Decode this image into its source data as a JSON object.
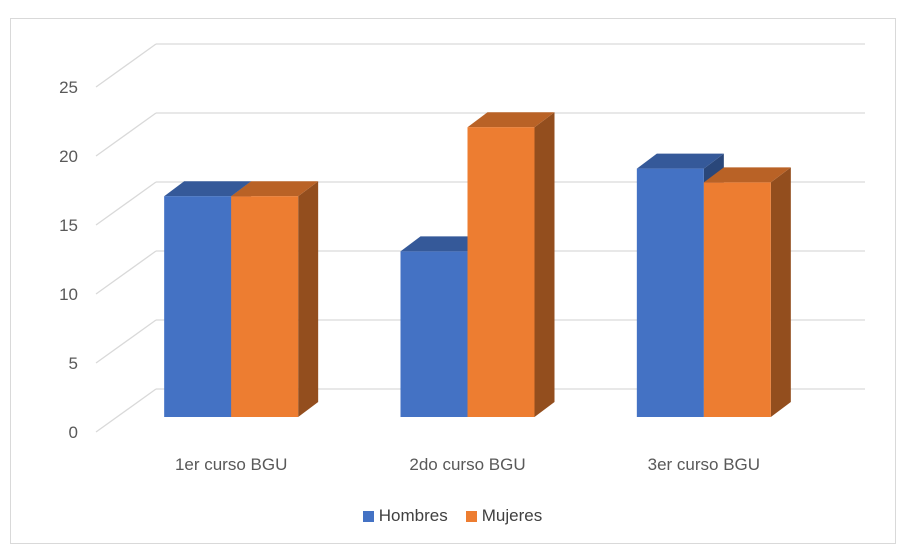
{
  "chart_data": {
    "type": "bar",
    "title": "",
    "categories": [
      "1er curso BGU",
      "2do curso BGU",
      "3er curso BGU"
    ],
    "series": [
      {
        "name": "Hombres",
        "values": [
          16,
          12,
          18
        ],
        "color": "#4472c4"
      },
      {
        "name": "Mujeres",
        "values": [
          16,
          21,
          17
        ],
        "color": "#ed7d31"
      }
    ],
    "y_ticks": [
      "0",
      "5",
      "10",
      "15",
      "20",
      "25"
    ],
    "ylim": [
      0,
      25
    ],
    "xlabel": "",
    "ylabel": "",
    "grid": true,
    "legend_position": "bottom",
    "style": "3d-clustered-column"
  }
}
